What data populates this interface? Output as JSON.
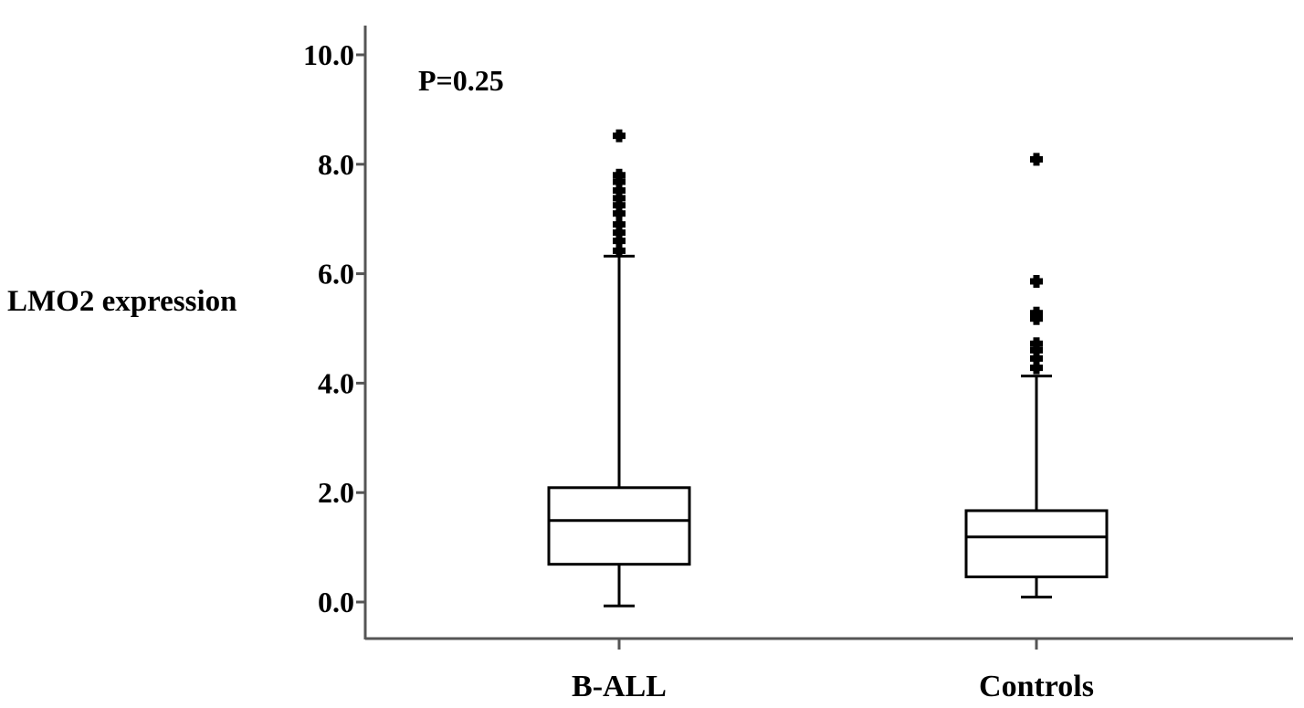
{
  "chart_data": {
    "type": "box",
    "title": "",
    "xlabel": "",
    "ylabel": "LMO2 expression",
    "ylim": [
      -0.6,
      10.6
    ],
    "yticks": [
      0.0,
      2.0,
      4.0,
      6.0,
      8.0,
      10.0
    ],
    "ytick_labels": [
      "0.0",
      "2.0",
      "4.0",
      "6.0",
      "8.0",
      "10.0"
    ],
    "grid": false,
    "annotation": "P=0.25",
    "categories": [
      "B-ALL",
      "Controls"
    ],
    "boxes": [
      {
        "category": "B-ALL",
        "whisker_low": -0.07,
        "q1": 0.69,
        "median": 1.49,
        "q3": 2.09,
        "whisker_high": 6.32,
        "outliers": [
          6.42,
          6.6,
          6.75,
          6.9,
          7.1,
          7.25,
          7.38,
          7.52,
          7.68,
          7.8,
          8.52
        ]
      },
      {
        "category": "Controls",
        "whisker_low": 0.09,
        "q1": 0.46,
        "median": 1.19,
        "q3": 1.67,
        "whisker_high": 4.13,
        "outliers": [
          4.28,
          4.45,
          4.6,
          4.72,
          5.18,
          5.28,
          5.86,
          8.09
        ]
      }
    ],
    "colors": {
      "axis": "#555555",
      "box_stroke": "#000000",
      "outlier": "#000000"
    }
  }
}
